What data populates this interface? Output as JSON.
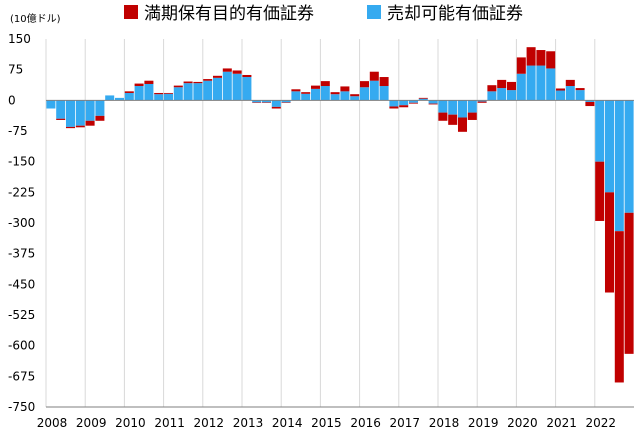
{
  "chart_data": {
    "type": "bar",
    "stacked": true,
    "title": "",
    "unit_label": "(10億ドル)",
    "xlabel": "",
    "ylabel": "",
    "ylim": [
      -750,
      150
    ],
    "yticks": [
      150,
      75,
      0,
      -75,
      -150,
      -225,
      -300,
      -375,
      -450,
      -525,
      -600,
      -675,
      -750
    ],
    "year_labels": [
      "2008",
      "2009",
      "2010",
      "2011",
      "2012",
      "2013",
      "2014",
      "2015",
      "2016",
      "2017",
      "2018",
      "2019",
      "2020",
      "2021",
      "2022"
    ],
    "categories": [
      "2008Q1",
      "2008Q2",
      "2008Q3",
      "2008Q4",
      "2009Q1",
      "2009Q2",
      "2009Q3",
      "2009Q4",
      "2010Q1",
      "2010Q2",
      "2010Q3",
      "2010Q4",
      "2011Q1",
      "2011Q2",
      "2011Q3",
      "2011Q4",
      "2012Q1",
      "2012Q2",
      "2012Q3",
      "2012Q4",
      "2013Q1",
      "2013Q2",
      "2013Q3",
      "2013Q4",
      "2014Q1",
      "2014Q2",
      "2014Q3",
      "2014Q4",
      "2015Q1",
      "2015Q2",
      "2015Q3",
      "2015Q4",
      "2016Q1",
      "2016Q2",
      "2016Q3",
      "2016Q4",
      "2017Q1",
      "2017Q2",
      "2017Q3",
      "2017Q4",
      "2018Q1",
      "2018Q2",
      "2018Q3",
      "2018Q4",
      "2019Q1",
      "2019Q2",
      "2019Q3",
      "2019Q4",
      "2020Q1",
      "2020Q2",
      "2020Q3",
      "2020Q4",
      "2021Q1",
      "2021Q2",
      "2021Q3",
      "2021Q4",
      "2022Q1",
      "2022Q2",
      "2022Q3",
      "2022Q4"
    ],
    "series": [
      {
        "name": "売却可能有価証券",
        "color": "#35aaf0",
        "values": [
          -20,
          -45,
          -65,
          -62,
          -50,
          -38,
          12,
          6,
          18,
          35,
          40,
          15,
          16,
          32,
          42,
          42,
          48,
          55,
          70,
          65,
          57,
          -5,
          -5,
          -16,
          -5,
          22,
          16,
          28,
          35,
          15,
          22,
          10,
          32,
          48,
          35,
          -15,
          -12,
          -6,
          4,
          -8,
          -30,
          -35,
          -42,
          -30,
          -3,
          22,
          30,
          25,
          65,
          85,
          85,
          78,
          24,
          35,
          25,
          -4,
          -150,
          -225,
          -320,
          -275
        ]
      },
      {
        "name": "満期保有目的有価証券",
        "color": "#c00000",
        "values": [
          0,
          -3,
          -3,
          -4,
          -12,
          -12,
          0,
          0,
          4,
          6,
          8,
          3,
          2,
          4,
          4,
          3,
          4,
          5,
          8,
          8,
          5,
          -1,
          -1,
          -4,
          -1,
          5,
          4,
          8,
          12,
          5,
          12,
          5,
          15,
          22,
          22,
          -5,
          -5,
          -2,
          2,
          -2,
          -20,
          -25,
          -35,
          -18,
          -3,
          15,
          20,
          20,
          40,
          45,
          38,
          42,
          5,
          15,
          5,
          -10,
          -145,
          -245,
          -370,
          -345
        ]
      }
    ],
    "legend_position": "top"
  }
}
